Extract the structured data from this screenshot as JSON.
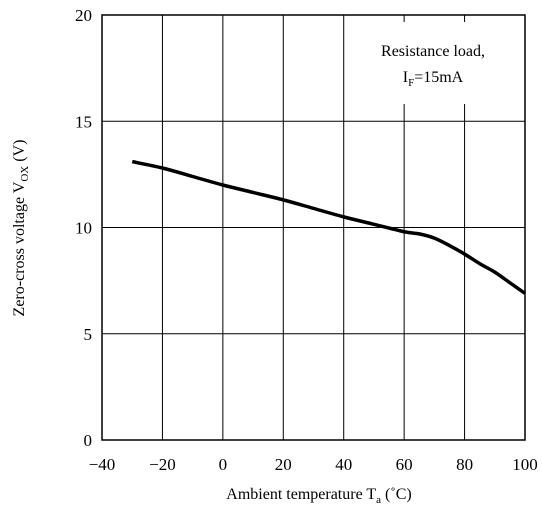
{
  "chart_data": {
    "type": "line",
    "title": "",
    "xlabel": {
      "main": "Ambient temperature T",
      "sub": "a",
      "unit": " (˚C)"
    },
    "ylabel": {
      "main": "Zero-cross voltage V",
      "sub": "OX",
      "unit": " (V)"
    },
    "xlim": [
      -40,
      100
    ],
    "ylim": [
      0,
      20
    ],
    "xticks": [
      -40,
      -20,
      0,
      20,
      40,
      60,
      80,
      100
    ],
    "yticks": [
      0,
      5,
      10,
      15,
      20
    ],
    "x_tick_labels": [
      "−40",
      "−20",
      "0",
      "20",
      "40",
      "60",
      "80",
      "100"
    ],
    "y_tick_labels": [
      "0",
      "5",
      "10",
      "15",
      "20"
    ],
    "grid": true,
    "annotation": {
      "line1": "Resistance load,",
      "line2_main": "I",
      "line2_sub": "F",
      "line2_rest": "=15mA"
    },
    "series": [
      {
        "name": "",
        "color": "#000000",
        "x": [
          -30,
          -20,
          -10,
          0,
          10,
          20,
          30,
          40,
          50,
          60,
          65,
          70,
          75,
          80,
          85,
          90,
          95,
          100
        ],
        "y": [
          13.1,
          12.8,
          12.4,
          12.0,
          11.65,
          11.3,
          10.9,
          10.5,
          10.15,
          9.8,
          9.7,
          9.5,
          9.15,
          8.75,
          8.3,
          7.9,
          7.4,
          6.9
        ]
      }
    ]
  }
}
